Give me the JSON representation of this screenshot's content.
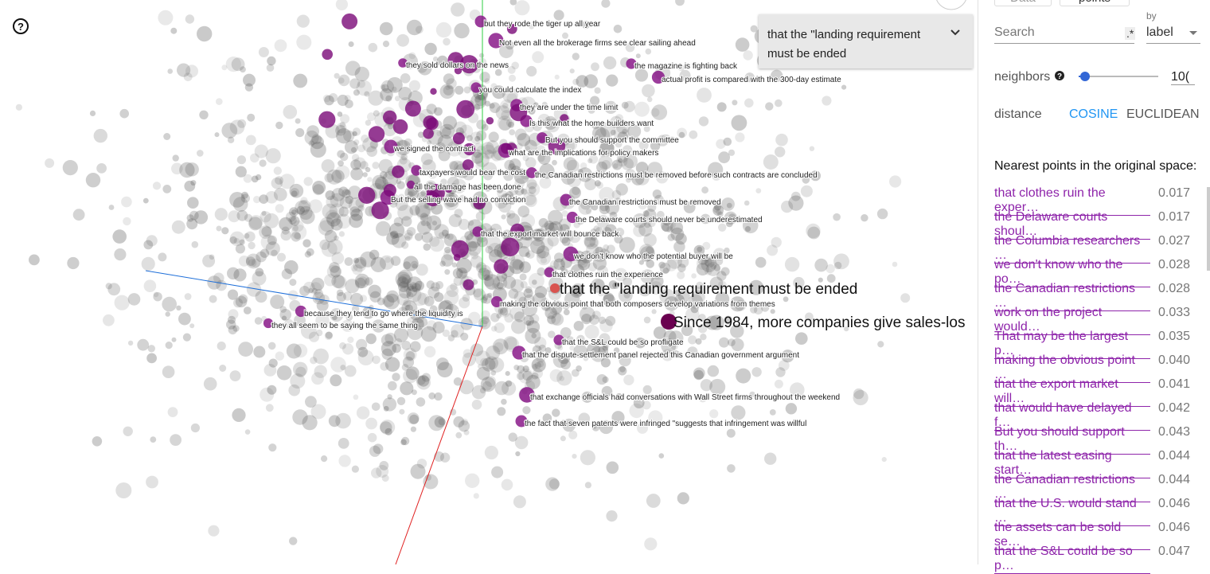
{
  "help_icon": "?",
  "projection": {
    "labels": [
      "but they rode the tiger up all year",
      "Not even all the brokerage firms see clear sailing ahead",
      "they sold dollars on the news",
      "the magazine is fighting back",
      "actual profit is compared with the 300-day estimate",
      "you could calculate the index",
      "they are under the time limit",
      "Is this what the home builders want",
      "But you should support the committee",
      "we signed the contract",
      "what are the implications for policy makers",
      "taxpayers would bear the cost",
      "the Canadian restrictions must be removed before such contracts are concluded",
      "all the damage has been done",
      "But the selling wave had no conviction",
      "the Canadian restrictions must be removed",
      "the Delaware courts should never be underestimated",
      "that the export market will bounce back",
      "we don't know who the potential buyer will be",
      "that clothes ruin the experience",
      "making the obvious point that both composers develop variations from themes",
      "because they tend to go where the liquidity is",
      "they all seem to be saying the same thing",
      "that the S&L could be so profligate",
      "that the dispute-settlement panel rejected this Canadian government argument",
      "that exchange officials had conversations with Wall Street firms throughout the weekend",
      "the fact that seven patents were infringed \"suggests that infringement was willful"
    ],
    "selected_label": "that the \"landing requirement must be ended",
    "hover_label": "Since 1984, more companies give sales-los"
  },
  "selection_box": "that the \"landing requirement must be ended",
  "panel": {
    "tabs": [
      "Data",
      "points"
    ],
    "search_placeholder": "Search",
    "regex": ".*",
    "by_label": "by",
    "by_value": "label",
    "neighbors_label": "neighbors",
    "neighbors_value": "10(",
    "distance_label": "distance",
    "distance_options": [
      "COSINE",
      "EUCLIDEAN"
    ],
    "nearest_title": "Nearest points in the original space:",
    "nearest": [
      {
        "text": "that clothes ruin the exper…",
        "value": "0.017"
      },
      {
        "text": "the Delaware courts shoul…",
        "value": "0.017"
      },
      {
        "text": "the Columbia researchers …",
        "value": "0.027"
      },
      {
        "text": "we don't know who the po…",
        "value": "0.028"
      },
      {
        "text": "the Canadian restrictions …",
        "value": "0.028"
      },
      {
        "text": "work on the project would…",
        "value": "0.033"
      },
      {
        "text": "That may be the largest p…",
        "value": "0.035"
      },
      {
        "text": "making the obvious point …",
        "value": "0.040"
      },
      {
        "text": "that the export market will…",
        "value": "0.041"
      },
      {
        "text": "that would have delayed f…",
        "value": "0.042"
      },
      {
        "text": "But you should support th…",
        "value": "0.043"
      },
      {
        "text": "that the latest easing start…",
        "value": "0.044"
      },
      {
        "text": "the Canadian restrictions …",
        "value": "0.044"
      },
      {
        "text": "that the U.S. would stand …",
        "value": "0.046"
      },
      {
        "text": "the assets can be sold se…",
        "value": "0.046"
      },
      {
        "text": "that the S&L could be so p…",
        "value": "0.047"
      }
    ]
  }
}
